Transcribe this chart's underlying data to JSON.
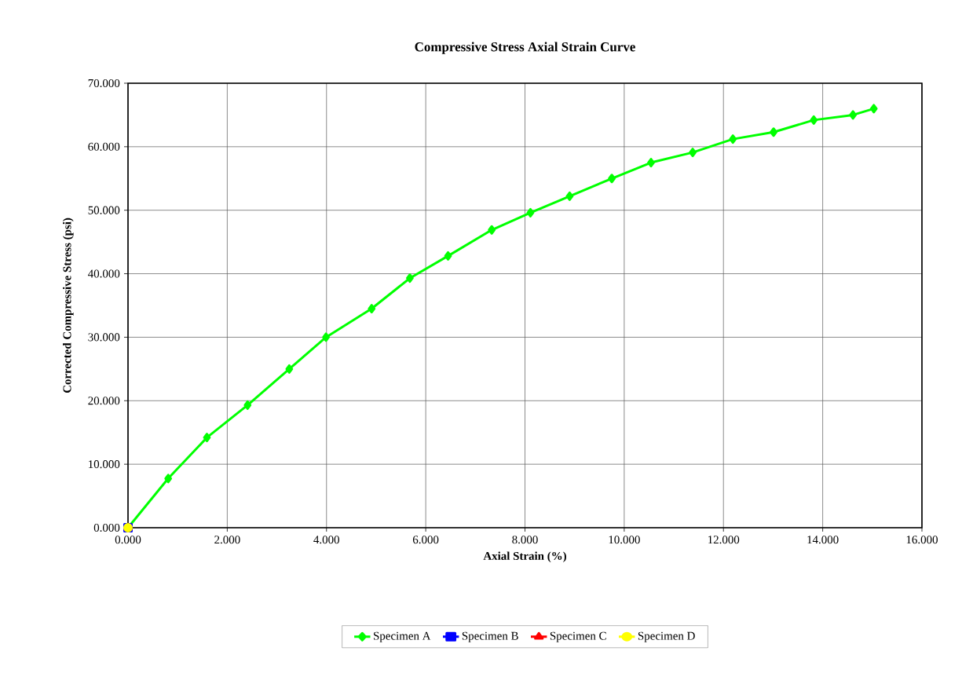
{
  "chart_data": {
    "type": "line",
    "title": "Compressive Stress Axial Strain Curve",
    "xlabel": "Axial Strain (%)",
    "ylabel": "Corrected Compressive Stress (psi)",
    "xlim": [
      0,
      16
    ],
    "ylim": [
      0,
      70
    ],
    "xticks": [
      {
        "value": 0,
        "label": "0.000"
      },
      {
        "value": 2,
        "label": "2.000"
      },
      {
        "value": 4,
        "label": "4.000"
      },
      {
        "value": 6,
        "label": "6.000"
      },
      {
        "value": 8,
        "label": "8.000"
      },
      {
        "value": 10,
        "label": "10.000"
      },
      {
        "value": 12,
        "label": "12.000"
      },
      {
        "value": 14,
        "label": "14.000"
      },
      {
        "value": 16,
        "label": "16.000"
      }
    ],
    "yticks": [
      {
        "value": 0,
        "label": "0.000"
      },
      {
        "value": 10,
        "label": "10.000"
      },
      {
        "value": 20,
        "label": "20.000"
      },
      {
        "value": 30,
        "label": "30.000"
      },
      {
        "value": 40,
        "label": "40.000"
      },
      {
        "value": 50,
        "label": "50.000"
      },
      {
        "value": 60,
        "label": "60.000"
      },
      {
        "value": 70,
        "label": "70.000"
      }
    ],
    "grid": true,
    "legend": "bottom",
    "line_style": "solid",
    "series": [
      {
        "name": "Specimen A",
        "color": "#00ff00",
        "marker": "diamond",
        "x": [
          0,
          0.81,
          1.59,
          2.41,
          3.25,
          3.99,
          4.91,
          5.68,
          6.45,
          7.33,
          8.11,
          8.9,
          9.75,
          10.54,
          11.38,
          12.19,
          13.01,
          13.82,
          14.61,
          15.03
        ],
        "values": [
          0,
          7.75,
          14.2,
          19.3,
          25.0,
          30.0,
          34.5,
          39.3,
          42.8,
          46.9,
          49.6,
          52.2,
          55.0,
          57.5,
          59.1,
          61.2,
          62.3,
          64.2,
          65.0,
          66.0
        ]
      },
      {
        "name": "Specimen B",
        "color": "#0000ff",
        "marker": "square",
        "x": [
          0
        ],
        "values": [
          0
        ]
      },
      {
        "name": "Specimen C",
        "color": "#ff0000",
        "marker": "triangle",
        "x": [
          0
        ],
        "values": [
          0
        ]
      },
      {
        "name": "Specimen D",
        "color": "#ffff00",
        "marker": "circle",
        "x": [
          0
        ],
        "values": [
          0
        ]
      }
    ]
  }
}
